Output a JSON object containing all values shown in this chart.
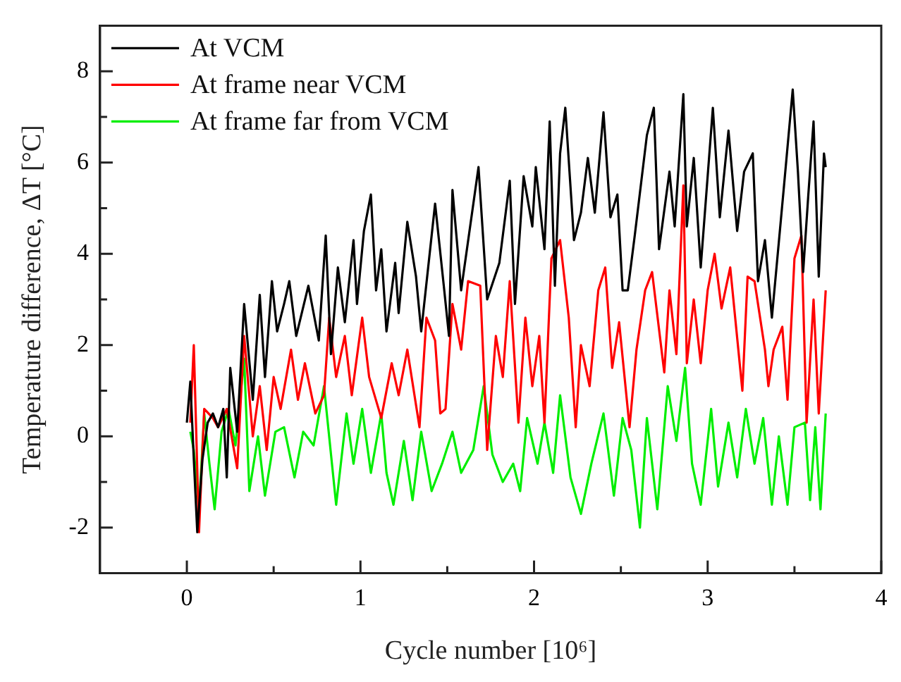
{
  "chart_data": {
    "type": "line",
    "xlabel": "Cycle number [10⁶]",
    "ylabel": "Temperature difference, ΔT [°C]",
    "xlim": [
      -0.5,
      4
    ],
    "ylim": [
      -3,
      9
    ],
    "xticks": [
      0,
      {
        "value": 0.5,
        "label": null
      },
      1,
      {
        "value": 1.5,
        "label": null
      },
      2,
      {
        "value": 2.5,
        "label": null
      },
      3,
      {
        "value": 3.5,
        "label": null
      },
      4
    ],
    "yticks": [
      -2,
      {
        "value": -1,
        "label": null
      },
      0,
      {
        "value": 1,
        "label": null
      },
      2,
      {
        "value": 3,
        "label": null
      },
      4,
      {
        "value": 5,
        "label": null
      },
      6,
      {
        "value": 7,
        "label": null
      },
      8
    ],
    "grid": false,
    "legend": "top left",
    "marker": "none",
    "line_style": "solid",
    "series": [
      {
        "name": "At VCM",
        "color": "#000000",
        "x": [
          0.0,
          0.02,
          0.04,
          0.06,
          0.09,
          0.12,
          0.15,
          0.18,
          0.21,
          0.23,
          0.25,
          0.29,
          0.33,
          0.38,
          0.42,
          0.45,
          0.49,
          0.52,
          0.56,
          0.59,
          0.63,
          0.7,
          0.76,
          0.8,
          0.83,
          0.87,
          0.91,
          0.96,
          0.98,
          1.02,
          1.06,
          1.09,
          1.12,
          1.15,
          1.2,
          1.22,
          1.27,
          1.32,
          1.35,
          1.43,
          1.48,
          1.51,
          1.53,
          1.58,
          1.68,
          1.73,
          1.8,
          1.86,
          1.89,
          1.94,
          1.99,
          2.01,
          2.06,
          2.09,
          2.12,
          2.15,
          2.18,
          2.23,
          2.27,
          2.31,
          2.35,
          2.4,
          2.44,
          2.48,
          2.51,
          2.54,
          2.58,
          2.65,
          2.69,
          2.72,
          2.78,
          2.81,
          2.86,
          2.88,
          2.92,
          2.96,
          3.03,
          3.07,
          3.12,
          3.17,
          3.21,
          3.26,
          3.29,
          3.33,
          3.37,
          3.44,
          3.49,
          3.52,
          3.55,
          3.58,
          3.61,
          3.64,
          3.67,
          3.68
        ],
        "values": [
          0.3,
          1.2,
          -0.5,
          -2.1,
          -0.5,
          0.3,
          0.5,
          0.2,
          0.6,
          -0.9,
          1.5,
          0.1,
          2.9,
          0.8,
          3.1,
          1.3,
          3.4,
          2.3,
          2.9,
          3.4,
          2.2,
          3.3,
          2.1,
          4.4,
          1.8,
          3.7,
          2.5,
          4.3,
          2.9,
          4.5,
          5.3,
          3.2,
          4.1,
          2.3,
          3.8,
          2.7,
          4.7,
          3.5,
          2.3,
          5.1,
          3.3,
          2.2,
          5.4,
          3.2,
          5.9,
          3.0,
          3.8,
          5.6,
          2.9,
          5.7,
          4.6,
          5.9,
          4.1,
          6.9,
          3.3,
          6.2,
          7.2,
          4.3,
          4.9,
          6.1,
          4.9,
          7.1,
          4.8,
          5.3,
          3.2,
          3.2,
          4.4,
          6.6,
          7.2,
          4.1,
          5.8,
          4.6,
          7.5,
          4.6,
          6.1,
          3.7,
          7.2,
          4.8,
          6.7,
          4.5,
          5.8,
          6.2,
          3.4,
          4.3,
          2.6,
          5.5,
          7.6,
          5.8,
          3.6,
          5.3,
          6.9,
          3.5,
          6.2,
          5.9
        ]
      },
      {
        "name": "At frame near VCM",
        "color": "#ff0000",
        "x": [
          0.02,
          0.04,
          0.07,
          0.1,
          0.15,
          0.18,
          0.23,
          0.29,
          0.33,
          0.38,
          0.42,
          0.46,
          0.5,
          0.54,
          0.6,
          0.64,
          0.68,
          0.74,
          0.79,
          0.82,
          0.86,
          0.91,
          0.95,
          1.01,
          1.05,
          1.12,
          1.18,
          1.22,
          1.27,
          1.34,
          1.38,
          1.43,
          1.46,
          1.49,
          1.53,
          1.58,
          1.62,
          1.69,
          1.73,
          1.78,
          1.82,
          1.86,
          1.91,
          1.95,
          1.99,
          2.03,
          2.06,
          2.1,
          2.15,
          2.2,
          2.24,
          2.27,
          2.32,
          2.37,
          2.41,
          2.45,
          2.49,
          2.55,
          2.59,
          2.64,
          2.68,
          2.75,
          2.78,
          2.82,
          2.86,
          2.88,
          2.92,
          2.96,
          3.0,
          3.04,
          3.08,
          3.13,
          3.2,
          3.23,
          3.27,
          3.33,
          3.35,
          3.38,
          3.43,
          3.46,
          3.5,
          3.54,
          3.57,
          3.61,
          3.64,
          3.68
        ],
        "values": [
          0.3,
          2.0,
          -2.1,
          0.6,
          0.4,
          0.2,
          0.6,
          -0.7,
          2.2,
          0.0,
          1.1,
          -0.3,
          1.3,
          0.6,
          1.9,
          0.8,
          1.6,
          0.5,
          0.9,
          2.6,
          1.3,
          2.2,
          0.9,
          2.6,
          1.3,
          0.4,
          1.6,
          0.9,
          1.9,
          0.2,
          2.6,
          2.1,
          0.5,
          0.6,
          2.9,
          1.9,
          3.4,
          3.3,
          -0.3,
          2.2,
          1.3,
          3.4,
          0.3,
          2.6,
          1.1,
          2.2,
          0.3,
          3.9,
          4.3,
          2.6,
          0.2,
          2.0,
          1.1,
          3.2,
          3.7,
          1.5,
          2.5,
          0.2,
          1.9,
          3.2,
          3.6,
          1.4,
          3.2,
          1.8,
          5.5,
          1.6,
          3.0,
          1.6,
          3.2,
          4.0,
          2.8,
          3.7,
          1.0,
          3.5,
          3.4,
          1.9,
          1.1,
          1.9,
          2.4,
          0.8,
          3.9,
          4.4,
          0.3,
          3.0,
          0.5,
          3.2
        ]
      },
      {
        "name": "At frame far from VCM",
        "color": "#00ee00",
        "x": [
          0.02,
          0.04,
          0.07,
          0.1,
          0.13,
          0.16,
          0.2,
          0.24,
          0.28,
          0.33,
          0.36,
          0.41,
          0.45,
          0.51,
          0.56,
          0.62,
          0.67,
          0.73,
          0.79,
          0.86,
          0.92,
          0.96,
          1.01,
          1.06,
          1.12,
          1.15,
          1.19,
          1.25,
          1.3,
          1.35,
          1.41,
          1.47,
          1.53,
          1.58,
          1.65,
          1.71,
          1.76,
          1.82,
          1.88,
          1.92,
          1.96,
          2.02,
          2.06,
          2.11,
          2.15,
          2.21,
          2.27,
          2.33,
          2.4,
          2.46,
          2.51,
          2.56,
          2.61,
          2.65,
          2.71,
          2.77,
          2.82,
          2.87,
          2.91,
          2.96,
          3.02,
          3.06,
          3.12,
          3.17,
          3.22,
          3.27,
          3.32,
          3.37,
          3.41,
          3.46,
          3.5,
          3.56,
          3.59,
          3.62,
          3.65,
          3.68
        ],
        "values": [
          0.1,
          -0.3,
          -1.6,
          0.5,
          -0.6,
          -1.6,
          0.1,
          0.6,
          -0.2,
          1.7,
          -1.2,
          0.0,
          -1.3,
          0.1,
          0.2,
          -0.9,
          0.1,
          -0.2,
          1.1,
          -1.5,
          0.5,
          -0.6,
          0.6,
          -0.8,
          0.5,
          -0.8,
          -1.5,
          -0.1,
          -1.4,
          0.1,
          -1.2,
          -0.6,
          0.1,
          -0.8,
          -0.3,
          1.1,
          -0.4,
          -1.0,
          -0.6,
          -1.2,
          0.4,
          -0.6,
          0.3,
          -0.8,
          0.9,
          -0.9,
          -1.7,
          -0.6,
          0.5,
          -1.3,
          0.4,
          -0.3,
          -2.0,
          0.4,
          -1.6,
          1.1,
          -0.1,
          1.5,
          -0.6,
          -1.5,
          0.6,
          -1.1,
          0.3,
          -0.9,
          0.6,
          -0.6,
          0.4,
          -1.5,
          0.0,
          -1.5,
          0.2,
          0.3,
          -1.4,
          0.2,
          -1.6,
          0.5
        ]
      }
    ]
  }
}
